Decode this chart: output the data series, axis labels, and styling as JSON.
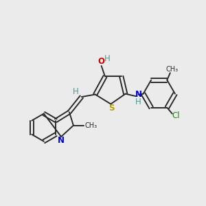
{
  "bg_color": "#ebebeb",
  "figsize": [
    3.0,
    3.0
  ],
  "dpi": 100,
  "bond_color": "#2a2a2a",
  "lw": 1.4,
  "font_size": 8.5,
  "colors": {
    "N": "#0000dd",
    "O": "#cc0000",
    "S": "#b8a000",
    "H": "#4a9999",
    "Cl": "#228822",
    "C": "#2a2a2a"
  }
}
